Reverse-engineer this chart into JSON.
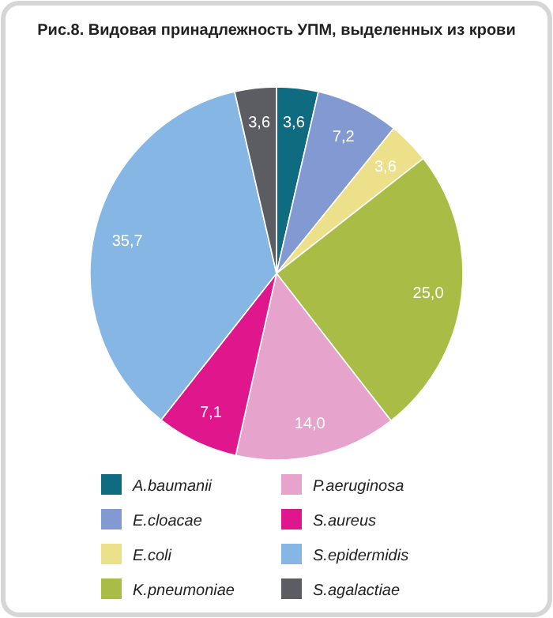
{
  "chart_data": {
    "type": "pie",
    "title": "Рис.8. Видовая принадлежность УПМ, выделенных из крови",
    "categories": [
      "A.baumanii",
      "E.cloacae",
      "E.coli",
      "K.pneumoniae",
      "P.aeruginosa",
      "S.aureus",
      "S.epidermidis",
      "S.agalactiae"
    ],
    "values": [
      3.6,
      7.2,
      3.6,
      25.0,
      14.0,
      7.1,
      35.7,
      3.6
    ],
    "value_labels": [
      "3,6",
      "7,2",
      "3,6",
      "25,0",
      "14,0",
      "7,1",
      "35,7",
      "3,6"
    ],
    "colors": [
      "#0e6b80",
      "#8299d2",
      "#ece08a",
      "#a9bd46",
      "#e6a3cc",
      "#e0168c",
      "#86b6e3",
      "#5b5d62"
    ],
    "legend": "bottom"
  }
}
